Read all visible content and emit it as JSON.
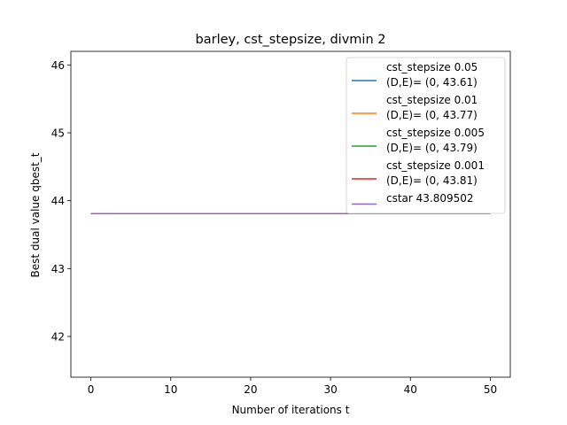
{
  "chart_data": {
    "type": "line",
    "title": "barley, cst_stepsize, divmin 2",
    "xlabel": "Number of iterations t",
    "ylabel": "Best dual value qbest_t",
    "xlim": [
      -2.5,
      52.5
    ],
    "ylim": [
      41.4,
      46.2
    ],
    "xticks": [
      0,
      10,
      20,
      30,
      40,
      50
    ],
    "yticks": [
      42,
      43,
      44,
      45,
      46
    ],
    "grid": false,
    "legend_position": "top-right",
    "series": [
      {
        "name": "cst_stepsize 0.05\n(D,E)= (0, 43.61)",
        "color": "#1f77b4",
        "x": [
          0,
          50
        ],
        "y": [
          43.81,
          43.81
        ]
      },
      {
        "name": "cst_stepsize 0.01\n(D,E)= (0, 43.77)",
        "color": "#ff7f0e",
        "x": [
          0,
          50
        ],
        "y": [
          43.81,
          43.81
        ]
      },
      {
        "name": "cst_stepsize 0.005\n(D,E)= (0, 43.79)",
        "color": "#2ca02c",
        "x": [
          0,
          50
        ],
        "y": [
          43.81,
          43.81
        ]
      },
      {
        "name": "cst_stepsize 0.001\n(D,E)= (0, 43.81)",
        "color": "#d62728",
        "x": [
          0,
          50
        ],
        "y": [
          43.81,
          43.81
        ]
      },
      {
        "name": "cstar 43.809502",
        "color": "#9467bd",
        "x": [
          0,
          50
        ],
        "y": [
          43.809502,
          43.809502
        ]
      }
    ]
  }
}
